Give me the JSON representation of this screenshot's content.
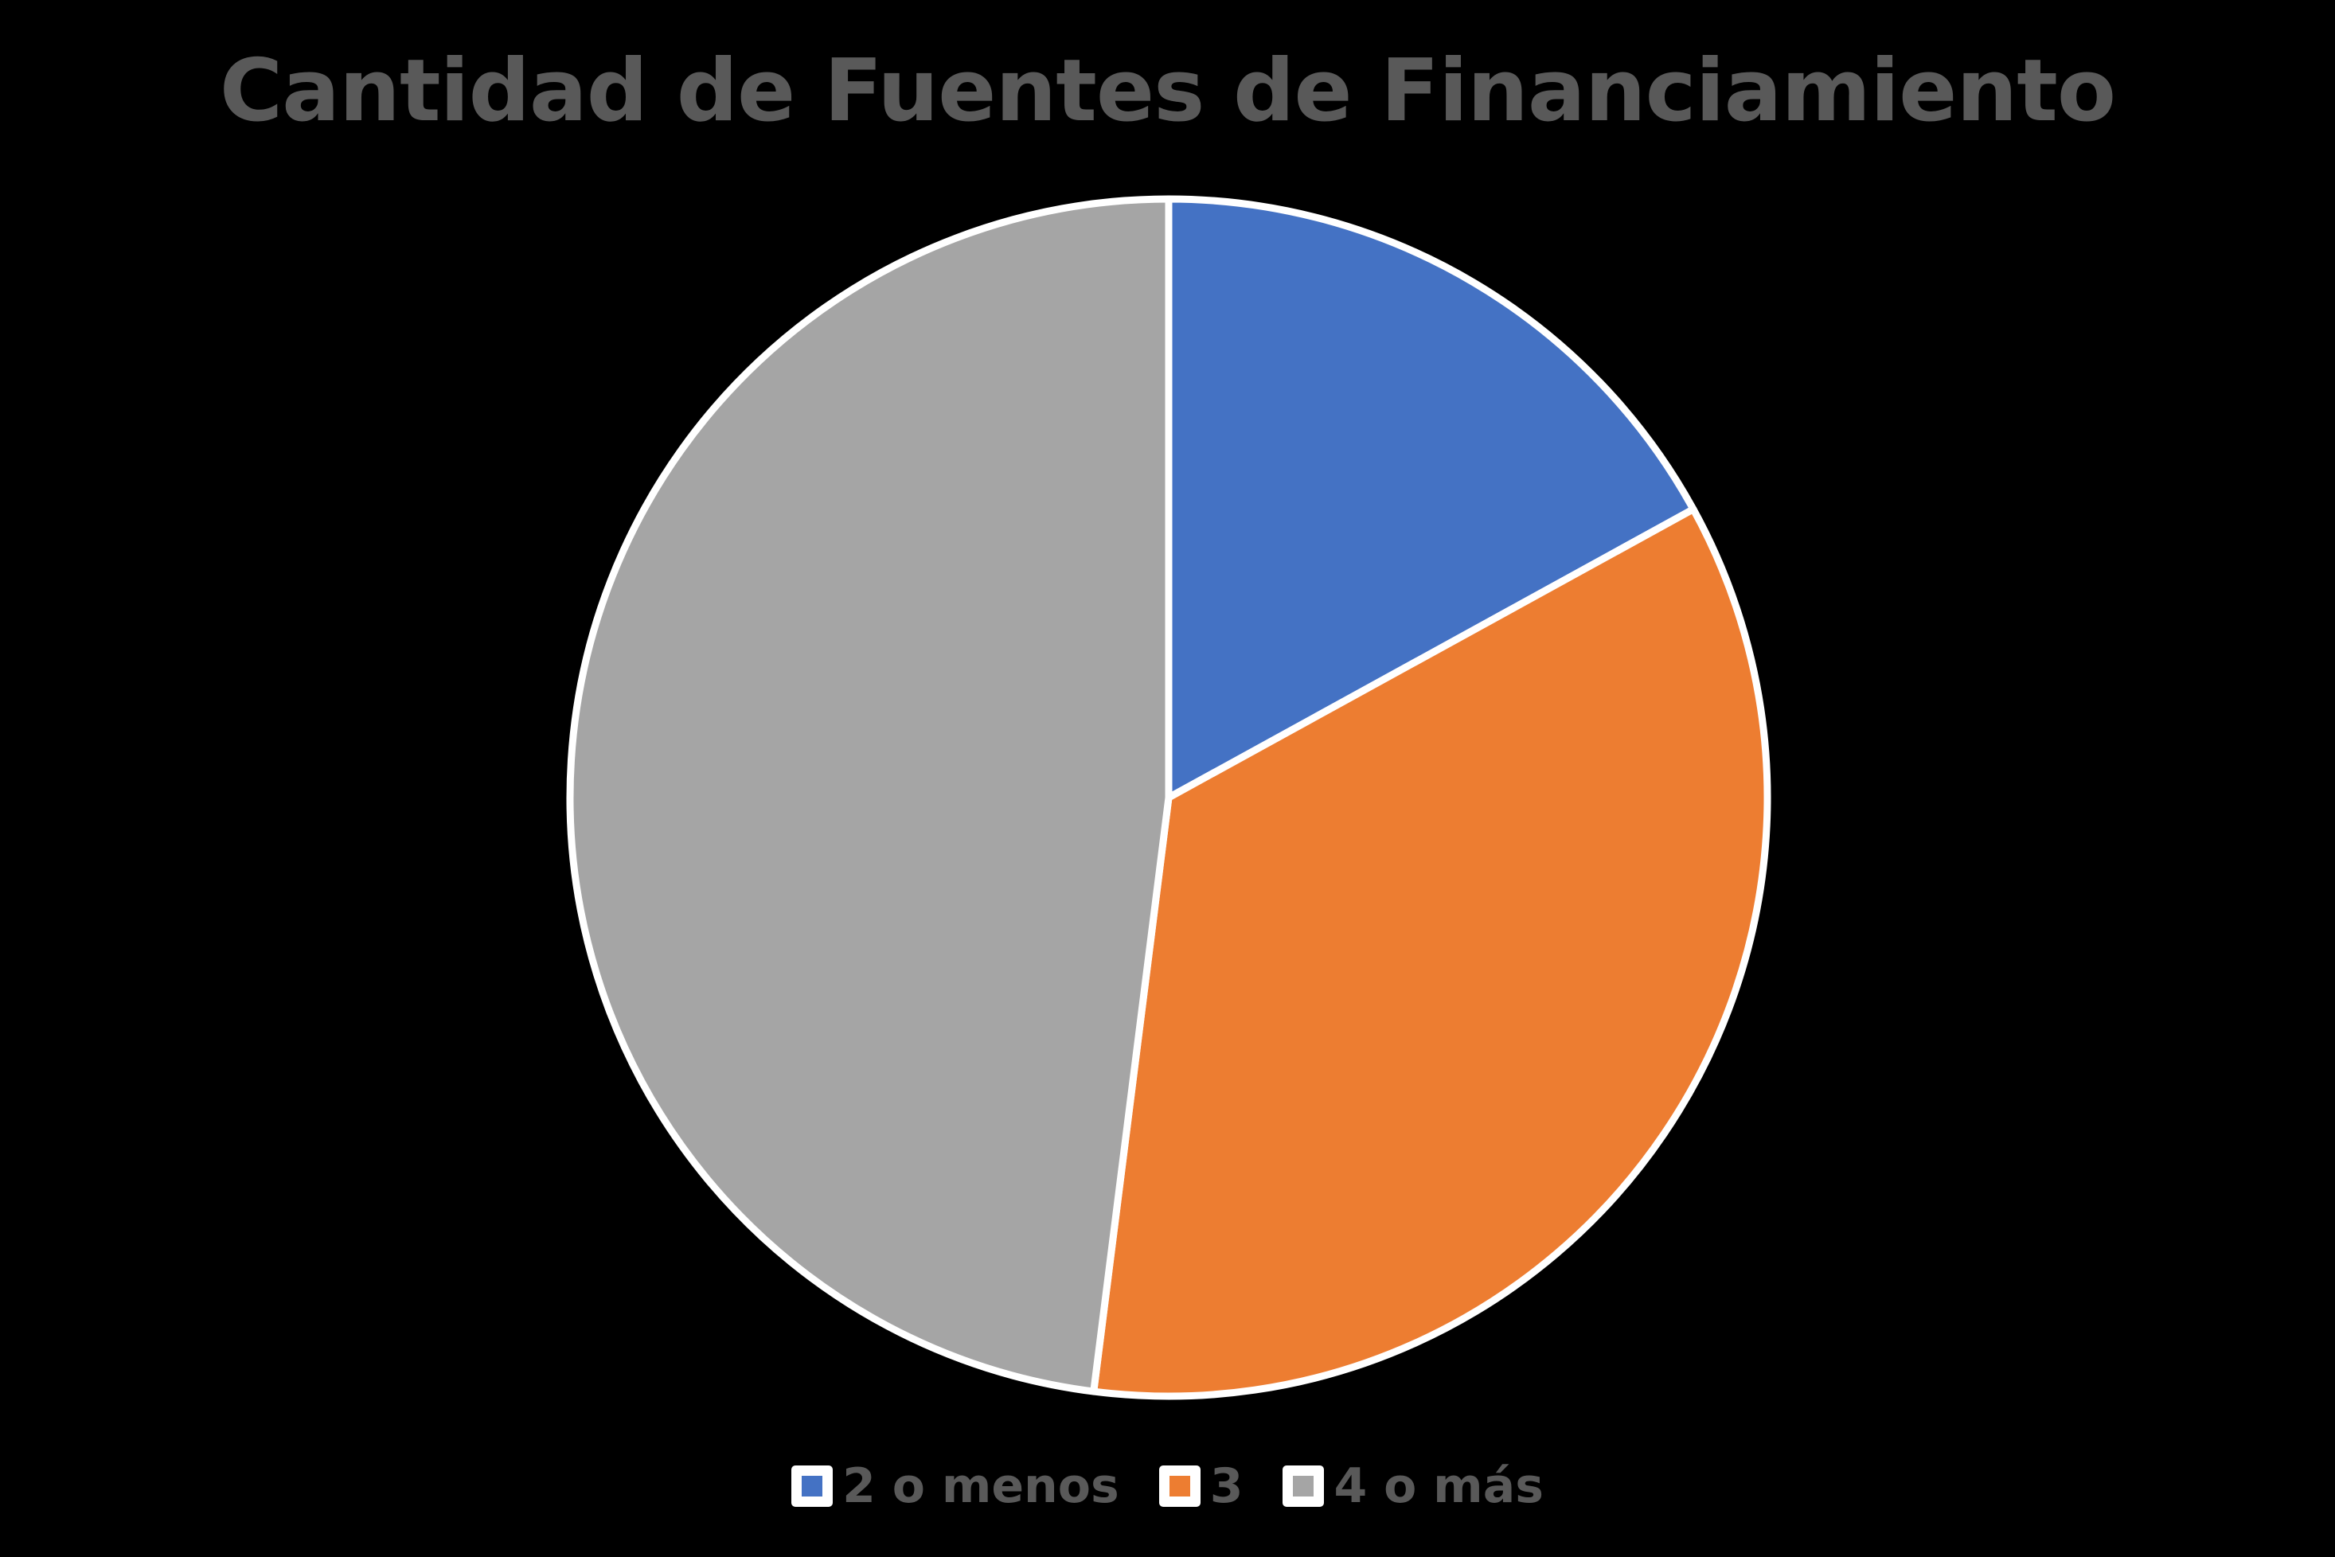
{
  "chart_data": {
    "type": "pie",
    "title": "Cantidad de Fuentes de Financiamiento",
    "categories": [
      "2 o menos",
      "3",
      "4 o más"
    ],
    "values": [
      17,
      35,
      48
    ],
    "unit": "percent (estimated from slice angles)",
    "colors": [
      "#4472C4",
      "#ED7D31",
      "#A5A5A5"
    ],
    "start_angle_deg": 0,
    "direction": "clockwise",
    "legend_position": "bottom",
    "slice_border_color": "#FFFFFF"
  },
  "title": "Cantidad de Fuentes de Financiamiento",
  "legend": [
    {
      "label": "2 o menos",
      "color": "#4472C4"
    },
    {
      "label": "3",
      "color": "#ED7D31"
    },
    {
      "label": "4 o más",
      "color": "#A5A5A5"
    }
  ],
  "colors": {
    "background": "#000000",
    "text": "#595959",
    "border": "#FFFFFF"
  }
}
